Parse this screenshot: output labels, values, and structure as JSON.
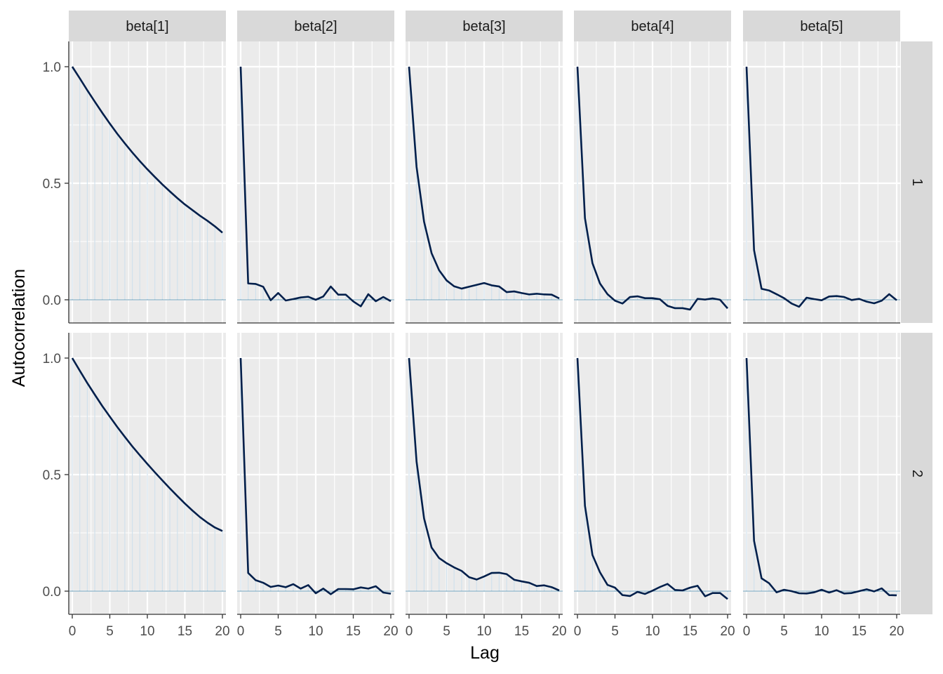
{
  "chart_data": {
    "type": "line",
    "xlabel": "Lag",
    "ylabel": "Autocorrelation",
    "columns": [
      "beta[1]",
      "beta[2]",
      "beta[3]",
      "beta[4]",
      "beta[5]"
    ],
    "rows": [
      "1",
      "2"
    ],
    "xlim": [
      0,
      20
    ],
    "ylim": [
      -0.1,
      1.1
    ],
    "x_ticks": [
      0,
      5,
      10,
      15,
      20
    ],
    "x_tick_labels": [
      "0",
      "5",
      "10",
      "15",
      "20"
    ],
    "y_ticks": [
      0,
      0.5,
      1
    ],
    "y_tick_labels": [
      "0.0",
      "0.5",
      "1.0"
    ],
    "lags": [
      0,
      1,
      2,
      3,
      4,
      5,
      6,
      7,
      8,
      9,
      10,
      11,
      12,
      13,
      14,
      15,
      16,
      17,
      18,
      19,
      20
    ],
    "style": {
      "line_color": "#011f4b",
      "bar_color": "#d1e1ec",
      "zero_line_color": "#6497b1",
      "panel_color": "#ebebeb",
      "strip_color": "#d9d9d9",
      "grid": true
    },
    "panels": [
      {
        "row": "1",
        "column": "beta[1]",
        "values": [
          1.0,
          0.95,
          0.899,
          0.85,
          0.802,
          0.756,
          0.712,
          0.671,
          0.632,
          0.595,
          0.56,
          0.527,
          0.495,
          0.465,
          0.436,
          0.409,
          0.385,
          0.361,
          0.339,
          0.315,
          0.288
        ]
      },
      {
        "row": "1",
        "column": "beta[2]",
        "values": [
          1.0,
          0.07,
          0.068,
          0.056,
          -0.002,
          0.029,
          -0.003,
          0.003,
          0.01,
          0.013,
          0.0,
          0.014,
          0.057,
          0.022,
          0.022,
          -0.007,
          -0.028,
          0.024,
          -0.006,
          0.012,
          -0.006
        ]
      },
      {
        "row": "1",
        "column": "beta[3]",
        "values": [
          1.0,
          0.57,
          0.335,
          0.2,
          0.127,
          0.083,
          0.058,
          0.048,
          0.056,
          0.064,
          0.072,
          0.062,
          0.057,
          0.033,
          0.036,
          0.029,
          0.023,
          0.026,
          0.023,
          0.022,
          0.006
        ]
      },
      {
        "row": "1",
        "column": "beta[4]",
        "values": [
          1.0,
          0.35,
          0.157,
          0.07,
          0.024,
          -0.004,
          -0.016,
          0.012,
          0.015,
          0.007,
          0.007,
          0.002,
          -0.026,
          -0.036,
          -0.036,
          -0.042,
          0.004,
          0.001,
          0.006,
          0.0,
          -0.037
        ]
      },
      {
        "row": "1",
        "column": "beta[5]",
        "values": [
          1.0,
          0.213,
          0.047,
          0.04,
          0.024,
          0.007,
          -0.016,
          -0.03,
          0.009,
          0.003,
          -0.002,
          0.014,
          0.016,
          0.012,
          -0.001,
          0.004,
          -0.008,
          -0.015,
          -0.004,
          0.024,
          -0.002
        ]
      },
      {
        "row": "2",
        "column": "beta[1]",
        "values": [
          1.0,
          0.946,
          0.893,
          0.843,
          0.794,
          0.749,
          0.704,
          0.662,
          0.621,
          0.583,
          0.546,
          0.51,
          0.475,
          0.441,
          0.408,
          0.376,
          0.346,
          0.318,
          0.294,
          0.273,
          0.258
        ]
      },
      {
        "row": "2",
        "column": "beta[2]",
        "values": [
          1.0,
          0.078,
          0.047,
          0.036,
          0.018,
          0.024,
          0.017,
          0.03,
          0.011,
          0.026,
          -0.009,
          0.011,
          -0.013,
          0.009,
          0.009,
          0.008,
          0.016,
          0.011,
          0.021,
          -0.006,
          -0.011
        ]
      },
      {
        "row": "2",
        "column": "beta[3]",
        "values": [
          1.0,
          0.556,
          0.312,
          0.187,
          0.142,
          0.12,
          0.102,
          0.087,
          0.06,
          0.05,
          0.063,
          0.078,
          0.079,
          0.073,
          0.049,
          0.042,
          0.036,
          0.022,
          0.025,
          0.017,
          0.003
        ]
      },
      {
        "row": "2",
        "column": "beta[4]",
        "values": [
          1.0,
          0.366,
          0.155,
          0.081,
          0.027,
          0.015,
          -0.017,
          -0.021,
          -0.003,
          -0.012,
          0.002,
          0.018,
          0.031,
          0.005,
          0.003,
          0.015,
          0.023,
          -0.022,
          -0.008,
          -0.008,
          -0.034
        ]
      },
      {
        "row": "2",
        "column": "beta[5]",
        "values": [
          1.0,
          0.216,
          0.055,
          0.034,
          -0.005,
          0.006,
          0.0,
          -0.009,
          -0.01,
          -0.005,
          0.006,
          -0.006,
          0.004,
          -0.01,
          -0.008,
          0.0,
          0.008,
          -0.001,
          0.012,
          -0.017,
          -0.018
        ]
      }
    ]
  }
}
